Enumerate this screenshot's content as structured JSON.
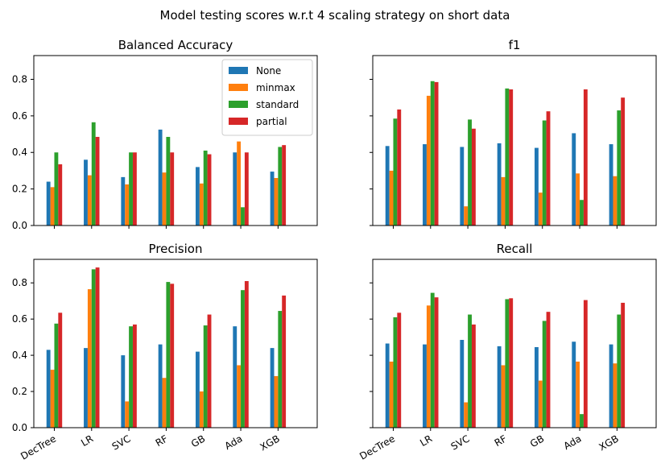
{
  "suptitle": "Model testing scores w.r.t 4 scaling strategy on short data",
  "colors": {
    "None": "#1f77b4",
    "minmax": "#ff7f0e",
    "standard": "#2ca02c",
    "partial": "#d62728"
  },
  "legend": {
    "location": "upper-right",
    "panel": "Balanced Accuracy"
  },
  "chart_data": [
    {
      "type": "bar",
      "title": "Balanced Accuracy",
      "categories": [
        "DecTree",
        "LR",
        "SVC",
        "RF",
        "GB",
        "Ada",
        "XGB"
      ],
      "ylim": [
        0,
        0.93
      ],
      "yticks": [
        "0.0",
        "0.2",
        "0.4",
        "0.6",
        "0.8"
      ],
      "show_xticklabels": false,
      "show_yticklabels": true,
      "series": [
        {
          "name": "None",
          "values": [
            0.24,
            0.36,
            0.265,
            0.525,
            0.32,
            0.4,
            0.295
          ]
        },
        {
          "name": "minmax",
          "values": [
            0.21,
            0.275,
            0.225,
            0.29,
            0.23,
            0.46,
            0.26
          ]
        },
        {
          "name": "standard",
          "values": [
            0.4,
            0.565,
            0.4,
            0.485,
            0.41,
            0.1,
            0.43
          ]
        },
        {
          "name": "partial",
          "values": [
            0.335,
            0.485,
            0.4,
            0.4,
            0.39,
            0.4,
            0.44
          ]
        }
      ]
    },
    {
      "type": "bar",
      "title": "f1",
      "categories": [
        "DecTree",
        "LR",
        "SVC",
        "RF",
        "GB",
        "Ada",
        "XGB"
      ],
      "ylim": [
        0,
        0.93
      ],
      "yticks": [
        "0.0",
        "0.2",
        "0.4",
        "0.6",
        "0.8"
      ],
      "show_xticklabels": false,
      "show_yticklabels": false,
      "series": [
        {
          "name": "None",
          "values": [
            0.435,
            0.445,
            0.43,
            0.45,
            0.425,
            0.505,
            0.445
          ]
        },
        {
          "name": "minmax",
          "values": [
            0.3,
            0.71,
            0.105,
            0.265,
            0.18,
            0.285,
            0.27
          ]
        },
        {
          "name": "standard",
          "values": [
            0.585,
            0.79,
            0.58,
            0.75,
            0.575,
            0.14,
            0.63
          ]
        },
        {
          "name": "partial",
          "values": [
            0.635,
            0.785,
            0.53,
            0.745,
            0.625,
            0.745,
            0.7
          ]
        }
      ]
    },
    {
      "type": "bar",
      "title": "Precision",
      "categories": [
        "DecTree",
        "LR",
        "SVC",
        "RF",
        "GB",
        "Ada",
        "XGB"
      ],
      "ylim": [
        0,
        0.93
      ],
      "yticks": [
        "0.0",
        "0.2",
        "0.4",
        "0.6",
        "0.8"
      ],
      "show_xticklabels": true,
      "show_yticklabels": true,
      "series": [
        {
          "name": "None",
          "values": [
            0.43,
            0.44,
            0.4,
            0.46,
            0.42,
            0.56,
            0.44
          ]
        },
        {
          "name": "minmax",
          "values": [
            0.32,
            0.765,
            0.145,
            0.275,
            0.2,
            0.345,
            0.285
          ]
        },
        {
          "name": "standard",
          "values": [
            0.575,
            0.875,
            0.56,
            0.805,
            0.565,
            0.76,
            0.645
          ]
        },
        {
          "name": "partial",
          "values": [
            0.635,
            0.885,
            0.57,
            0.795,
            0.625,
            0.81,
            0.73
          ]
        }
      ]
    },
    {
      "type": "bar",
      "title": "Recall",
      "categories": [
        "DecTree",
        "LR",
        "SVC",
        "RF",
        "GB",
        "Ada",
        "XGB"
      ],
      "ylim": [
        0,
        0.93
      ],
      "yticks": [
        "0.0",
        "0.2",
        "0.4",
        "0.6",
        "0.8"
      ],
      "show_xticklabels": true,
      "show_yticklabels": false,
      "series": [
        {
          "name": "None",
          "values": [
            0.465,
            0.46,
            0.485,
            0.45,
            0.445,
            0.475,
            0.46
          ]
        },
        {
          "name": "minmax",
          "values": [
            0.365,
            0.675,
            0.14,
            0.345,
            0.26,
            0.365,
            0.355
          ]
        },
        {
          "name": "standard",
          "values": [
            0.61,
            0.745,
            0.625,
            0.71,
            0.59,
            0.075,
            0.625
          ]
        },
        {
          "name": "partial",
          "values": [
            0.635,
            0.72,
            0.57,
            0.715,
            0.64,
            0.705,
            0.69
          ]
        }
      ]
    }
  ]
}
